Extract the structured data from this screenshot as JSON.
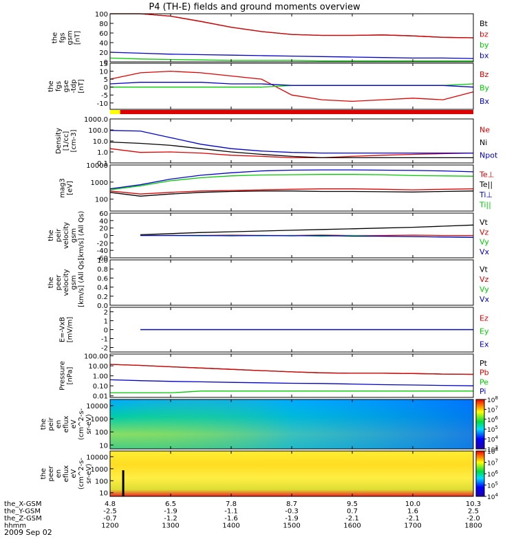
{
  "title": "P4 (TH-E) fields and ground moments overview",
  "date": "2009 Sep 02",
  "ephemeris": {
    "rows": [
      {
        "label": "the_X-GSM",
        "values": [
          "4.8",
          "6.5",
          "7.8",
          "8.7",
          "9.5",
          "10.0",
          "10.3"
        ]
      },
      {
        "label": "the_Y-GSM",
        "values": [
          "-2.5",
          "-1.9",
          "-1.1",
          "-0.3",
          "0.7",
          "1.6",
          "2.5"
        ]
      },
      {
        "label": "the_Z-GSM",
        "values": [
          "-0.7",
          "-1.2",
          "-1.6",
          "-1.9",
          "-2.1",
          "-2.1",
          "-2.0"
        ]
      },
      {
        "label": "hhmm",
        "values": [
          "1200",
          "1300",
          "1400",
          "1500",
          "1600",
          "1700",
          "1800"
        ]
      }
    ]
  },
  "colors": {
    "black": "#000000",
    "red": "#dd0000",
    "green": "#00cc00",
    "blue": "#0000cc",
    "yellow": "#ffff00"
  },
  "state_bar": {
    "yellow_until": "1210",
    "red_after": "1210"
  },
  "chart_data": [
    {
      "id": "fgs_gsm",
      "type": "line",
      "ylabel": [
        "the",
        "fgs",
        "gsm",
        "[nT]"
      ],
      "ylim": [
        0,
        100
      ],
      "yticks": [
        "0",
        "20",
        "40",
        "60",
        "80",
        "100"
      ],
      "x": [
        "1200",
        "1230",
        "1300",
        "1330",
        "1400",
        "1430",
        "1500",
        "1530",
        "1600",
        "1630",
        "1700",
        "1730",
        "1800"
      ],
      "series": [
        {
          "name": "Bt",
          "color": "#000000",
          "values": [
            100,
            100,
            95,
            84,
            72,
            63,
            57,
            55,
            55,
            56,
            54,
            51,
            50
          ]
        },
        {
          "name": "bz",
          "color": "#dd0000",
          "values": [
            100,
            100,
            95,
            84,
            72,
            63,
            57,
            55,
            55,
            56,
            54,
            51,
            50
          ]
        },
        {
          "name": "by",
          "color": "#00cc00",
          "values": [
            8,
            6,
            5,
            4,
            3,
            3,
            3,
            2,
            2,
            2,
            2,
            2,
            2
          ]
        },
        {
          "name": "bx",
          "color": "#0000cc",
          "values": [
            20,
            18,
            16,
            15,
            14,
            13,
            12,
            11,
            10,
            9,
            8,
            8,
            7
          ]
        }
      ]
    },
    {
      "id": "fgs_gse",
      "type": "line",
      "ylabel": [
        "the",
        "fgs",
        "gse",
        "-tdp",
        "[nT]"
      ],
      "ylim": [
        -14,
        15
      ],
      "yticks": [
        "-10",
        "-5",
        "0",
        "5",
        "10",
        "15"
      ],
      "x": [
        "1200",
        "1230",
        "1300",
        "1330",
        "1400",
        "1430",
        "1500",
        "1530",
        "1600",
        "1630",
        "1700",
        "1730",
        "1800"
      ],
      "series": [
        {
          "name": "Bz",
          "color": "#dd0000",
          "values": [
            5,
            9,
            10,
            9,
            7,
            5,
            -5,
            -8,
            -9,
            -8,
            -7,
            -8,
            -3
          ]
        },
        {
          "name": "By",
          "color": "#00cc00",
          "values": [
            0,
            0,
            0,
            0,
            0,
            0,
            1,
            1,
            1,
            1,
            1,
            1,
            2
          ]
        },
        {
          "name": "Bx",
          "color": "#0000cc",
          "values": [
            2,
            3,
            3,
            3,
            2,
            2,
            1,
            1,
            1,
            1,
            1,
            1,
            0
          ]
        }
      ]
    },
    {
      "id": "density",
      "type": "line",
      "log": true,
      "ylabel": [
        "Density",
        "[1/cc]",
        "[cm-3]"
      ],
      "ylim": [
        0.1,
        1000
      ],
      "yticks": [
        "0.1",
        "1.0",
        "10.0",
        "100.0",
        "1000.0"
      ],
      "x": [
        "1200",
        "1230",
        "1300",
        "1330",
        "1400",
        "1430",
        "1500",
        "1530",
        "1600",
        "1630",
        "1700",
        "1730",
        "1800"
      ],
      "series": [
        {
          "name": "Ne",
          "color": "#dd0000",
          "values": [
            2,
            0.9,
            1.0,
            0.8,
            0.5,
            0.4,
            0.3,
            0.3,
            0.4,
            0.5,
            0.6,
            0.7,
            0.8
          ]
        },
        {
          "name": "Ni",
          "color": "#000000",
          "values": [
            8,
            6,
            4,
            2,
            1,
            0.6,
            0.4,
            0.3,
            0.3,
            0.3,
            0.3,
            0.3,
            0.3
          ]
        },
        {
          "name": "Npot",
          "color": "#0000cc",
          "values": [
            90,
            80,
            20,
            5,
            2,
            1.2,
            0.9,
            0.8,
            0.8,
            0.8,
            0.8,
            0.8,
            0.8
          ]
        }
      ]
    },
    {
      "id": "temperature",
      "type": "line",
      "log": true,
      "ylabel": [
        "mag3",
        "[eV]"
      ],
      "ylim": [
        20,
        10000
      ],
      "yticks": [
        "100",
        "1000",
        "10000"
      ],
      "x": [
        "1200",
        "1230",
        "1300",
        "1330",
        "1400",
        "1430",
        "1500",
        "1530",
        "1600",
        "1630",
        "1700",
        "1730",
        "1800"
      ],
      "series": [
        {
          "name": "Te⊥",
          "color": "#dd0000",
          "values": [
            300,
            200,
            250,
            300,
            320,
            350,
            380,
            400,
            400,
            380,
            350,
            380,
            400
          ]
        },
        {
          "name": "Te||",
          "color": "#000000",
          "values": [
            250,
            150,
            200,
            250,
            280,
            300,
            300,
            280,
            280,
            270,
            260,
            280,
            300
          ]
        },
        {
          "name": "Ti⊥",
          "color": "#0000cc",
          "values": [
            400,
            700,
            1500,
            2500,
            3500,
            4500,
            5000,
            5200,
            5200,
            5000,
            4800,
            4500,
            4000
          ]
        },
        {
          "name": "Ti||",
          "color": "#00cc00",
          "values": [
            350,
            600,
            1200,
            1800,
            2300,
            2600,
            2700,
            2800,
            2800,
            2700,
            2400,
            2300,
            2200
          ]
        }
      ]
    },
    {
      "id": "peir_velocity",
      "type": "line",
      "ylabel": [
        "the",
        "peir",
        "velocity",
        "gsm",
        "[km/s] (All Qs)"
      ],
      "ylim": [
        -60,
        60
      ],
      "yticks": [
        "-60",
        "-40",
        "-20",
        "0",
        "20",
        "40",
        "60"
      ],
      "x": [
        "1230",
        "1300",
        "1330",
        "1400",
        "1430",
        "1500",
        "1530",
        "1600",
        "1630",
        "1700",
        "1730",
        "1800"
      ],
      "series": [
        {
          "name": "Vt",
          "color": "#000000",
          "values": [
            2,
            5,
            8,
            10,
            12,
            14,
            16,
            18,
            20,
            22,
            25,
            28
          ]
        },
        {
          "name": "Vz",
          "color": "#dd0000",
          "values": [
            0,
            0,
            0,
            1,
            0,
            0,
            1,
            0,
            0,
            1,
            0,
            0
          ]
        },
        {
          "name": "Vy",
          "color": "#00cc00",
          "values": [
            0,
            0,
            -1,
            0,
            -1,
            0,
            -2,
            0,
            -2,
            -3,
            -4,
            -5
          ]
        },
        {
          "name": "Vx",
          "color": "#0000cc",
          "values": [
            0,
            0,
            0,
            -1,
            0,
            -1,
            0,
            -2,
            -2,
            -3,
            -4,
            -5
          ]
        }
      ]
    },
    {
      "id": "peer_velocity",
      "type": "line",
      "ylabel": [
        "the",
        "peer",
        "velocity",
        "gsm",
        "[km/s] (All Qs)"
      ],
      "ylim": [
        0.0,
        1.0
      ],
      "yticks": [
        "0.0",
        "0.2",
        "0.4",
        "0.6",
        "0.8",
        "1.0"
      ],
      "x": [],
      "series": [
        {
          "name": "Vt",
          "color": "#000000",
          "values": []
        },
        {
          "name": "Vz",
          "color": "#dd0000",
          "values": []
        },
        {
          "name": "Vy",
          "color": "#00cc00",
          "values": []
        },
        {
          "name": "Vx",
          "color": "#0000cc",
          "values": []
        }
      ]
    },
    {
      "id": "efield",
      "type": "line",
      "ylabel": [
        "E=-VxB",
        "[mV/m]"
      ],
      "ylim": [
        -2.5,
        2.5
      ],
      "yticks": [
        "-2",
        "-1",
        "0",
        "1",
        "2"
      ],
      "x": [
        "1230",
        "1300",
        "1330",
        "1400",
        "1430",
        "1500",
        "1530",
        "1600",
        "1630",
        "1700",
        "1730",
        "1800"
      ],
      "series": [
        {
          "name": "Ez",
          "color": "#dd0000",
          "values": [
            0,
            0,
            0,
            0,
            0,
            0,
            0,
            0,
            0,
            0,
            0,
            0
          ]
        },
        {
          "name": "Ey",
          "color": "#00cc00",
          "values": [
            0,
            0,
            0,
            0,
            0,
            0,
            0,
            0,
            0,
            0,
            0,
            0
          ]
        },
        {
          "name": "Ex",
          "color": "#0000cc",
          "values": [
            0,
            0,
            0,
            0,
            0,
            0,
            0,
            0,
            0,
            0,
            0,
            0
          ]
        }
      ]
    },
    {
      "id": "pressure",
      "type": "line",
      "log": true,
      "ylabel": [
        "Pressure",
        "[nPa]"
      ],
      "ylim": [
        0.007,
        150
      ],
      "yticks": [
        "0.01",
        "0.10",
        "1.00",
        "10.00",
        "100.00"
      ],
      "x": [
        "1200",
        "1230",
        "1300",
        "1330",
        "1400",
        "1430",
        "1500",
        "1530",
        "1600",
        "1630",
        "1700",
        "1730",
        "1800"
      ],
      "series": [
        {
          "name": "Pt",
          "color": "#000000",
          "values": [
            14,
            11,
            8,
            6,
            4.5,
            3.3,
            2.5,
            2.0,
            1.8,
            1.8,
            1.7,
            1.5,
            1.4
          ]
        },
        {
          "name": "Pb",
          "color": "#dd0000",
          "values": [
            14,
            11,
            8,
            6,
            4.5,
            3.3,
            2.5,
            2.0,
            1.8,
            1.8,
            1.7,
            1.5,
            1.4
          ]
        },
        {
          "name": "Pe",
          "color": "#00cc00",
          "values": [
            0.02,
            0.02,
            0.02,
            0.03,
            0.03,
            0.03,
            0.03,
            0.03,
            0.03,
            0.03,
            0.03,
            0.03,
            0.03
          ]
        },
        {
          "name": "Pi",
          "color": "#0000cc",
          "values": [
            0.4,
            0.33,
            0.28,
            0.25,
            0.22,
            0.2,
            0.18,
            0.17,
            0.15,
            0.13,
            0.12,
            0.11,
            0.1
          ]
        }
      ]
    },
    {
      "id": "peir_en_eflux",
      "type": "heatmap",
      "ylabel": [
        "the",
        "peir",
        "en",
        "eflux",
        "eV",
        "(cm^2-s-",
        "sr-eV)"
      ],
      "ylim": [
        5,
        30000
      ],
      "yticks": [
        "10",
        "100",
        "1000",
        "10000"
      ],
      "colorbar": {
        "range": [
          1000,
          100000000
        ],
        "ticks": [
          "10^3",
          "10^4",
          "10^5",
          "10^6",
          "10^7",
          "10^8"
        ]
      }
    },
    {
      "id": "peer_en_eflux",
      "type": "heatmap",
      "ylabel": [
        "the",
        "peer",
        "en",
        "eflux",
        "eV",
        "(cm^2-s-",
        "sr-eV)"
      ],
      "ylim": [
        5,
        30000
      ],
      "yticks": [
        "10",
        "100",
        "1000",
        "10000"
      ],
      "colorbar": {
        "range": [
          10000,
          100000000
        ],
        "ticks": [
          "10^4",
          "10^5",
          "10^6",
          "10^7",
          "10^8"
        ]
      }
    }
  ]
}
